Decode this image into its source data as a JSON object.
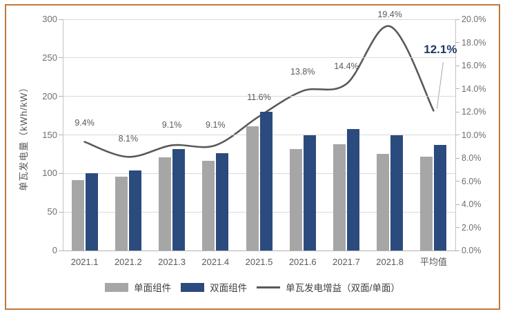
{
  "chart_data": {
    "type": "bar+line",
    "categories": [
      "2021.1",
      "2021.2",
      "2021.3",
      "2021.4",
      "2021.5",
      "2021.6",
      "2021.7",
      "2021.8",
      "平均值"
    ],
    "series": [
      {
        "name": "单面组件",
        "type": "bar",
        "color": "#a6a6a6",
        "values": [
          91,
          96,
          121,
          116,
          161,
          132,
          138,
          125,
          122
        ]
      },
      {
        "name": "双面组件",
        "type": "bar",
        "color": "#2b4b7e",
        "values": [
          100,
          104,
          132,
          126,
          180,
          150,
          158,
          150,
          137
        ]
      },
      {
        "name": "单瓦发电增益（双面/单面）",
        "type": "line",
        "color": "#595959",
        "values": [
          9.4,
          8.1,
          9.1,
          9.1,
          11.6,
          13.8,
          14.4,
          19.4,
          12.1
        ],
        "point_labels": [
          "9.4%",
          "8.1%",
          "9.1%",
          "9.1%",
          "11.6%",
          "13.8%",
          "14.4%",
          "19.4%",
          "12.1%"
        ]
      }
    ],
    "left_axis": {
      "title": "单瓦发电量（kWh/kW）",
      "min": 0,
      "max": 300,
      "step": 50,
      "ticks": [
        "300",
        "250",
        "200",
        "150",
        "100",
        "50",
        "0"
      ]
    },
    "right_axis": {
      "min": 0,
      "max": 20,
      "step": 2,
      "ticks": [
        "20.0%",
        "18.0%",
        "16.0%",
        "14.0%",
        "12.0%",
        "10.0%",
        "8.0%",
        "6.0%",
        "4.0%",
        "2.0%",
        "0.0%"
      ]
    },
    "legend": [
      "单面组件",
      "双面组件",
      "单瓦发电增益（双面/单面）"
    ],
    "highlight_label": {
      "text": "12.1%",
      "color": "#1f3864"
    },
    "grid": "horizontal",
    "legend_position": "bottom"
  },
  "colors": {
    "frame_border": "#c0773d",
    "gridline": "#d9d9d9",
    "axis_line": "#c4c4c4",
    "tick_text": "#6e6e6e",
    "data_label": "#595959",
    "leader_line": "#a6a6a6",
    "background": "#ffffff"
  }
}
